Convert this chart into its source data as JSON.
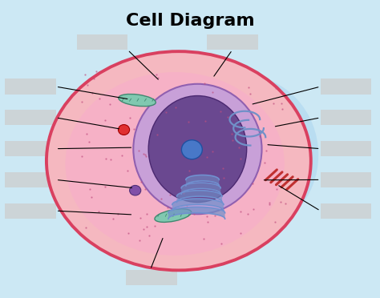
{
  "title": "Cell Diagram",
  "title_fontsize": 16,
  "title_fontweight": "bold",
  "fig_bg": "#cce8f4",
  "cell_outer_fc": "#f5b8c0",
  "cell_outer_ec": "#d94060",
  "cytoplasm_fc": "#f7b0c8",
  "nuc_outer_fc": "#c8a0d8",
  "nuc_outer_ec": "#9060b0",
  "nuc_inner_fc": "#6a4890",
  "nuc_inner_ec": "#4a2870",
  "nucleolus_fc": "#4878c8",
  "nucleolus_ec": "#2050a0",
  "mit_fc": "#80c8b0",
  "mit_ec": "#408870",
  "centriole_fc": "#e03030",
  "centriole_ec": "#a00000",
  "lysosome_fc": "#8050a8",
  "lysosome_ec": "#503078",
  "golgi_color": "#7090d0",
  "er_color": "#7090c8",
  "red_struct_color": "#c03030",
  "ribosome_color": "#c05080",
  "pointer_color": "black",
  "grey_box_color": "#cccccc",
  "glow_color": "#aad4f0"
}
